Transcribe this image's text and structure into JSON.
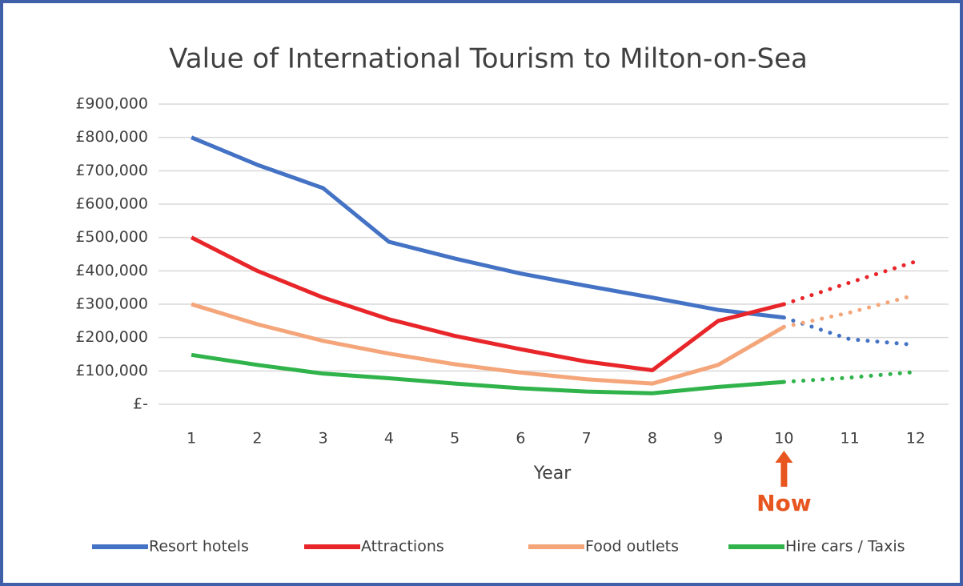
{
  "chart_data": {
    "type": "line",
    "title": "Value of International Tourism to Milton-on-Sea",
    "x_label": "Year",
    "categories": [
      1,
      2,
      3,
      4,
      5,
      6,
      7,
      8,
      9,
      10,
      11,
      12
    ],
    "series": [
      {
        "name": "Resort hotels",
        "color": "#4472c4",
        "values": [
          800000,
          718000,
          648000,
          487000,
          437000,
          392000,
          355000,
          320000,
          283000,
          260000,
          195000,
          178000
        ]
      },
      {
        "name": "Attractions",
        "color": "#e8262a",
        "values": [
          500000,
          400000,
          320000,
          255000,
          205000,
          165000,
          128000,
          102000,
          250000,
          300000,
          365000,
          428000
        ]
      },
      {
        "name": "Food outlets",
        "color": "#f4a57a",
        "values": [
          300000,
          240000,
          190000,
          152000,
          120000,
          95000,
          75000,
          62000,
          118000,
          232000,
          275000,
          328000
        ]
      },
      {
        "name": "Hire cars / Taxis",
        "color": "#2fb34a",
        "values": [
          148000,
          118000,
          92000,
          78000,
          62000,
          48000,
          38000,
          33000,
          52000,
          67000,
          80000,
          97000
        ]
      }
    ],
    "ylim": [
      0,
      900000
    ],
    "yticks": [
      {
        "value": 0,
        "label": "£-"
      },
      {
        "value": 100000,
        "label": "£100,000"
      },
      {
        "value": 200000,
        "label": "£200,000"
      },
      {
        "value": 300000,
        "label": "£300,000"
      },
      {
        "value": 400000,
        "label": "£400,000"
      },
      {
        "value": 500000,
        "label": "£500,000"
      },
      {
        "value": 600000,
        "label": "£600,000"
      },
      {
        "value": 700000,
        "label": "£700,000"
      },
      {
        "value": 800000,
        "label": "£800,000"
      },
      {
        "value": 900000,
        "label": "£900,000"
      }
    ],
    "grid": true,
    "legend": "bottom",
    "annotation": {
      "text": "Now",
      "x": 10,
      "color": "#e8561f"
    }
  }
}
